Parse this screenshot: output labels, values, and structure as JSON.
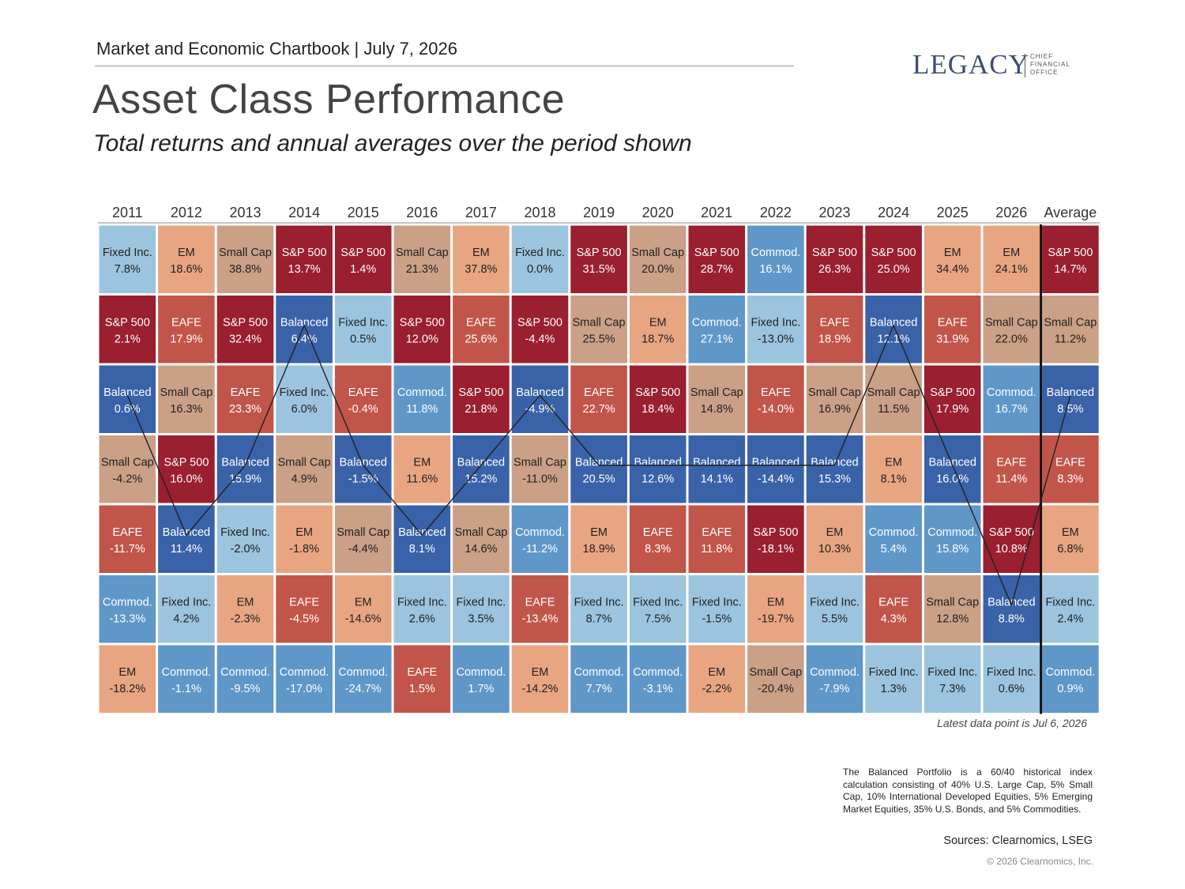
{
  "header": {
    "chartbook": "Market and Economic Chartbook | July 7, 2026",
    "logo_name": "LEGACY",
    "logo_sub": "CHIEF FINANCIAL OFFICE"
  },
  "title": "Asset Class Performance",
  "subtitle": "Total returns and annual averages over the period shown",
  "latest_note": "Latest data point is Jul 6, 2026",
  "footnote": "The Balanced Portfolio is a 60/40 historical index calculation consisting of 40% U.S. Large Cap, 5% Small Cap, 10% International Developed Equities, 5% Emerging Market Equities, 35% U.S. Bonds, and 5% Commodities.",
  "sources": "Sources: Clearnomics, LSEG",
  "copyright": "© 2026 Clearnomics, Inc.",
  "colors": {
    "S&P 500": "#9a1f2f",
    "EAFE": "#c2554a",
    "EM": "#e8a582",
    "Small Cap": "#caa086",
    "Fixed Inc.": "#9cc4df",
    "Commod.": "#5f97c9",
    "Balanced": "#3a62a8"
  },
  "chart_data": {
    "type": "table",
    "columns": [
      "2011",
      "2012",
      "2013",
      "2014",
      "2015",
      "2016",
      "2017",
      "2018",
      "2019",
      "2020",
      "2021",
      "2022",
      "2023",
      "2024",
      "2025",
      "2026",
      "Average"
    ],
    "grid": [
      [
        [
          "Fixed Inc.",
          "7.8%"
        ],
        [
          "S&P 500",
          "2.1%"
        ],
        [
          "Balanced",
          "0.6%"
        ],
        [
          "Small Cap",
          "-4.2%"
        ],
        [
          "EAFE",
          "-11.7%"
        ],
        [
          "Commod.",
          "-13.3%"
        ],
        [
          "EM",
          "-18.2%"
        ]
      ],
      [
        [
          "EM",
          "18.6%"
        ],
        [
          "EAFE",
          "17.9%"
        ],
        [
          "Small Cap",
          "16.3%"
        ],
        [
          "S&P 500",
          "16.0%"
        ],
        [
          "Balanced",
          "11.4%"
        ],
        [
          "Fixed Inc.",
          "4.2%"
        ],
        [
          "Commod.",
          "-1.1%"
        ]
      ],
      [
        [
          "Small Cap",
          "38.8%"
        ],
        [
          "S&P 500",
          "32.4%"
        ],
        [
          "EAFE",
          "23.3%"
        ],
        [
          "Balanced",
          "15.9%"
        ],
        [
          "Fixed Inc.",
          "-2.0%"
        ],
        [
          "EM",
          "-2.3%"
        ],
        [
          "Commod.",
          "-9.5%"
        ]
      ],
      [
        [
          "S&P 500",
          "13.7%"
        ],
        [
          "Balanced",
          "6.4%"
        ],
        [
          "Fixed Inc.",
          "6.0%"
        ],
        [
          "Small Cap",
          "4.9%"
        ],
        [
          "EM",
          "-1.8%"
        ],
        [
          "EAFE",
          "-4.5%"
        ],
        [
          "Commod.",
          "-17.0%"
        ]
      ],
      [
        [
          "S&P 500",
          "1.4%"
        ],
        [
          "Fixed Inc.",
          "0.5%"
        ],
        [
          "EAFE",
          "-0.4%"
        ],
        [
          "Balanced",
          "-1.5%"
        ],
        [
          "Small Cap",
          "-4.4%"
        ],
        [
          "EM",
          "-14.6%"
        ],
        [
          "Commod.",
          "-24.7%"
        ]
      ],
      [
        [
          "Small Cap",
          "21.3%"
        ],
        [
          "S&P 500",
          "12.0%"
        ],
        [
          "Commod.",
          "11.8%"
        ],
        [
          "EM",
          "11.6%"
        ],
        [
          "Balanced",
          "8.1%"
        ],
        [
          "Fixed Inc.",
          "2.6%"
        ],
        [
          "EAFE",
          "1.5%"
        ]
      ],
      [
        [
          "EM",
          "37.8%"
        ],
        [
          "EAFE",
          "25.6%"
        ],
        [
          "S&P 500",
          "21.8%"
        ],
        [
          "Balanced",
          "15.2%"
        ],
        [
          "Small Cap",
          "14.6%"
        ],
        [
          "Fixed Inc.",
          "3.5%"
        ],
        [
          "Commod.",
          "1.7%"
        ]
      ],
      [
        [
          "Fixed Inc.",
          "0.0%"
        ],
        [
          "S&P 500",
          "-4.4%"
        ],
        [
          "Balanced",
          "-4.9%"
        ],
        [
          "Small Cap",
          "-11.0%"
        ],
        [
          "Commod.",
          "-11.2%"
        ],
        [
          "EAFE",
          "-13.4%"
        ],
        [
          "EM",
          "-14.2%"
        ]
      ],
      [
        [
          "S&P 500",
          "31.5%"
        ],
        [
          "Small Cap",
          "25.5%"
        ],
        [
          "EAFE",
          "22.7%"
        ],
        [
          "Balanced",
          "20.5%"
        ],
        [
          "EM",
          "18.9%"
        ],
        [
          "Fixed Inc.",
          "8.7%"
        ],
        [
          "Commod.",
          "7.7%"
        ]
      ],
      [
        [
          "Small Cap",
          "20.0%"
        ],
        [
          "EM",
          "18.7%"
        ],
        [
          "S&P 500",
          "18.4%"
        ],
        [
          "Balanced",
          "12.6%"
        ],
        [
          "EAFE",
          "8.3%"
        ],
        [
          "Fixed Inc.",
          "7.5%"
        ],
        [
          "Commod.",
          "-3.1%"
        ]
      ],
      [
        [
          "S&P 500",
          "28.7%"
        ],
        [
          "Commod.",
          "27.1%"
        ],
        [
          "Small Cap",
          "14.8%"
        ],
        [
          "Balanced",
          "14.1%"
        ],
        [
          "EAFE",
          "11.8%"
        ],
        [
          "Fixed Inc.",
          "-1.5%"
        ],
        [
          "EM",
          "-2.2%"
        ]
      ],
      [
        [
          "Commod.",
          "16.1%"
        ],
        [
          "Fixed Inc.",
          "-13.0%"
        ],
        [
          "EAFE",
          "-14.0%"
        ],
        [
          "Balanced",
          "-14.4%"
        ],
        [
          "S&P 500",
          "-18.1%"
        ],
        [
          "EM",
          "-19.7%"
        ],
        [
          "Small Cap",
          "-20.4%"
        ]
      ],
      [
        [
          "S&P 500",
          "26.3%"
        ],
        [
          "EAFE",
          "18.9%"
        ],
        [
          "Small Cap",
          "16.9%"
        ],
        [
          "Balanced",
          "15.3%"
        ],
        [
          "EM",
          "10.3%"
        ],
        [
          "Fixed Inc.",
          "5.5%"
        ],
        [
          "Commod.",
          "-7.9%"
        ]
      ],
      [
        [
          "S&P 500",
          "25.0%"
        ],
        [
          "Balanced",
          "12.1%"
        ],
        [
          "Small Cap",
          "11.5%"
        ],
        [
          "EM",
          "8.1%"
        ],
        [
          "Commod.",
          "5.4%"
        ],
        [
          "EAFE",
          "4.3%"
        ],
        [
          "Fixed Inc.",
          "1.3%"
        ]
      ],
      [
        [
          "EM",
          "34.4%"
        ],
        [
          "EAFE",
          "31.9%"
        ],
        [
          "S&P 500",
          "17.9%"
        ],
        [
          "Balanced",
          "16.0%"
        ],
        [
          "Commod.",
          "15.8%"
        ],
        [
          "Small Cap",
          "12.8%"
        ],
        [
          "Fixed Inc.",
          "7.3%"
        ]
      ],
      [
        [
          "EM",
          "24.1%"
        ],
        [
          "Small Cap",
          "22.0%"
        ],
        [
          "Commod.",
          "16.7%"
        ],
        [
          "EAFE",
          "11.4%"
        ],
        [
          "S&P 500",
          "10.8%"
        ],
        [
          "Balanced",
          "8.8%"
        ],
        [
          "Fixed Inc.",
          "0.6%"
        ]
      ],
      [
        [
          "S&P 500",
          "14.7%"
        ],
        [
          "Small Cap",
          "11.2%"
        ],
        [
          "Balanced",
          "8.5%"
        ],
        [
          "EAFE",
          "8.3%"
        ],
        [
          "EM",
          "6.8%"
        ],
        [
          "Fixed Inc.",
          "2.4%"
        ],
        [
          "Commod.",
          "0.9%"
        ]
      ]
    ],
    "highlight_series": "Balanced"
  }
}
